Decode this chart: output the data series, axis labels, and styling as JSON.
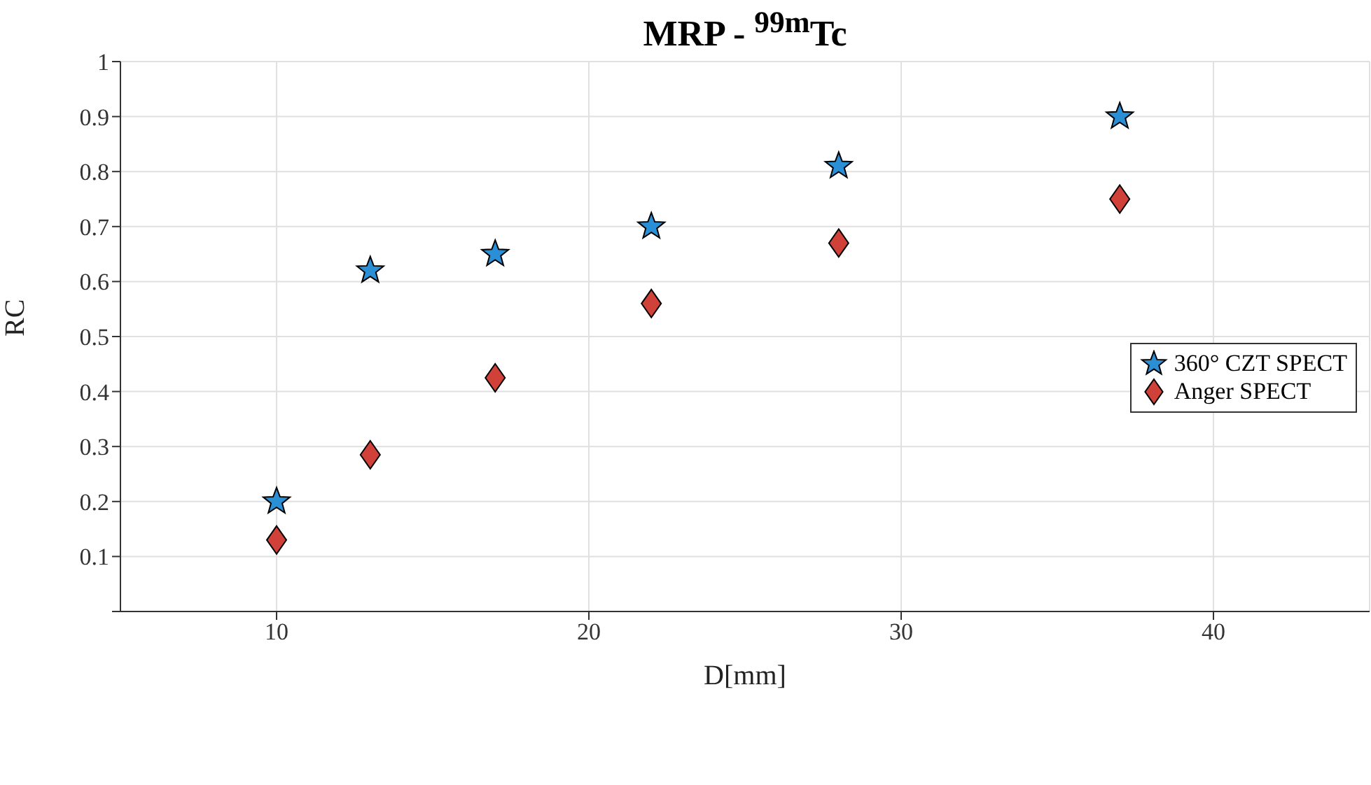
{
  "chart_data": {
    "type": "scatter",
    "title": "MRP - $^{99m}$Tc",
    "xlabel": "D[mm]",
    "ylabel": "RC",
    "x": [
      10,
      13,
      17,
      22,
      28,
      37
    ],
    "series": [
      {
        "name": "360° CZT SPECT",
        "color": "#2b8fd6",
        "marker": "star",
        "values": [
          0.2,
          0.62,
          0.65,
          0.7,
          0.81,
          0.9
        ]
      },
      {
        "name": "Anger SPECT",
        "color": "#d0413a",
        "marker": "diamond",
        "values": [
          0.13,
          0.285,
          0.425,
          0.56,
          0.67,
          0.75
        ]
      }
    ],
    "xlim": [
      5,
      45
    ],
    "xticks": [
      10,
      20,
      30,
      40
    ],
    "ylim": [
      0,
      1
    ],
    "yticks": [
      {
        "value": 0,
        "label": null
      },
      0.1,
      0.2,
      0.3,
      0.4,
      0.5,
      0.6,
      0.7,
      0.8,
      0.9,
      1
    ],
    "grid": true,
    "legend": "right"
  }
}
